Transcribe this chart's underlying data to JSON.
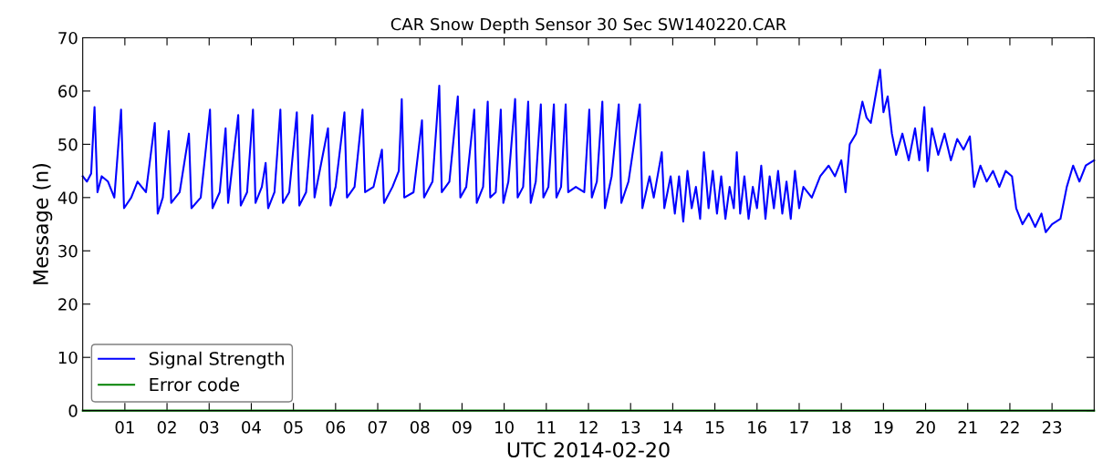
{
  "chart_data": {
    "type": "line",
    "title": "CAR Snow Depth Sensor 30 Sec SW140220.CAR",
    "xlabel": "UTC 2014-02-20",
    "ylabel": "Message (n)",
    "xlim": [
      0,
      24
    ],
    "ylim": [
      0,
      70
    ],
    "xticks": [
      {
        "value": 1,
        "label": "01"
      },
      {
        "value": 2,
        "label": "02"
      },
      {
        "value": 3,
        "label": "03"
      },
      {
        "value": 4,
        "label": "04"
      },
      {
        "value": 5,
        "label": "05"
      },
      {
        "value": 6,
        "label": "06"
      },
      {
        "value": 7,
        "label": "07"
      },
      {
        "value": 8,
        "label": "08"
      },
      {
        "value": 9,
        "label": "09"
      },
      {
        "value": 10,
        "label": "10"
      },
      {
        "value": 11,
        "label": "11"
      },
      {
        "value": 12,
        "label": "12"
      },
      {
        "value": 13,
        "label": "13"
      },
      {
        "value": 14,
        "label": "14"
      },
      {
        "value": 15,
        "label": "15"
      },
      {
        "value": 16,
        "label": "16"
      },
      {
        "value": 17,
        "label": "17"
      },
      {
        "value": 18,
        "label": "18"
      },
      {
        "value": 19,
        "label": "19"
      },
      {
        "value": 20,
        "label": "20"
      },
      {
        "value": 21,
        "label": "21"
      },
      {
        "value": 22,
        "label": "22"
      },
      {
        "value": 23,
        "label": "23"
      }
    ],
    "yticks": [
      0,
      10,
      20,
      30,
      40,
      50,
      60,
      70
    ],
    "grid": false,
    "legend": "bottom left",
    "series": [
      {
        "name": "Signal Strength",
        "color": "#0000ff",
        "x": [
          0.0,
          0.1,
          0.2,
          0.28,
          0.35,
          0.45,
          0.6,
          0.75,
          0.91,
          0.98,
          1.15,
          1.3,
          1.5,
          1.71,
          1.78,
          1.9,
          2.04,
          2.1,
          2.3,
          2.52,
          2.58,
          2.8,
          3.02,
          3.08,
          3.25,
          3.39,
          3.45,
          3.69,
          3.75,
          3.9,
          4.04,
          4.1,
          4.25,
          4.34,
          4.4,
          4.55,
          4.69,
          4.75,
          4.9,
          5.08,
          5.14,
          5.3,
          5.45,
          5.5,
          5.82,
          5.88,
          6.0,
          6.21,
          6.27,
          6.45,
          6.64,
          6.7,
          6.9,
          7.1,
          7.15,
          7.35,
          7.5,
          7.57,
          7.63,
          7.85,
          8.05,
          8.1,
          8.3,
          8.46,
          8.52,
          8.7,
          8.9,
          8.96,
          9.1,
          9.29,
          9.35,
          9.5,
          9.61,
          9.67,
          9.8,
          9.92,
          9.98,
          10.1,
          10.26,
          10.32,
          10.45,
          10.57,
          10.63,
          10.75,
          10.87,
          10.93,
          11.05,
          11.18,
          11.24,
          11.35,
          11.46,
          11.52,
          11.7,
          11.9,
          12.02,
          12.08,
          12.2,
          12.33,
          12.39,
          12.55,
          12.72,
          12.78,
          12.95,
          13.22,
          13.28,
          13.45,
          13.55,
          13.74,
          13.8,
          13.95,
          14.05,
          14.15,
          14.25,
          14.35,
          14.45,
          14.55,
          14.65,
          14.74,
          14.85,
          14.95,
          15.05,
          15.15,
          15.25,
          15.35,
          15.45,
          15.52,
          15.6,
          15.7,
          15.8,
          15.9,
          16.0,
          16.1,
          16.2,
          16.3,
          16.4,
          16.5,
          16.6,
          16.7,
          16.8,
          16.9,
          17.0,
          17.1,
          17.3,
          17.5,
          17.7,
          17.85,
          18.0,
          18.1,
          18.2,
          18.35,
          18.5,
          18.6,
          18.7,
          18.92,
          19.0,
          19.1,
          19.2,
          19.3,
          19.45,
          19.6,
          19.75,
          19.85,
          19.97,
          20.05,
          20.15,
          20.3,
          20.45,
          20.6,
          20.75,
          20.9,
          21.05,
          21.15,
          21.3,
          21.45,
          21.6,
          21.75,
          21.9,
          22.05,
          22.15,
          22.3,
          22.45,
          22.6,
          22.75,
          22.85,
          23.0,
          23.2,
          23.35,
          23.5,
          23.65,
          23.8,
          24.0
        ],
        "values": [
          44,
          43,
          44.5,
          57,
          41,
          44,
          43,
          40,
          56.5,
          38,
          40,
          43,
          41,
          54,
          37,
          40,
          52.5,
          39,
          41,
          52,
          38,
          40,
          56.5,
          38,
          41,
          53,
          39,
          55.5,
          38.5,
          41,
          56.5,
          39,
          42,
          46.5,
          38,
          41,
          56.5,
          39,
          41,
          56,
          38.5,
          41,
          55.5,
          40,
          53,
          38.5,
          42,
          56,
          40,
          42,
          56.5,
          41,
          42,
          49,
          39,
          42,
          45,
          58.5,
          40,
          41,
          54.5,
          40,
          43,
          61,
          41,
          43,
          59,
          40,
          42,
          56.5,
          39,
          42,
          58,
          40,
          41,
          56.5,
          39,
          43,
          58.5,
          40,
          42,
          58,
          39,
          43,
          57.5,
          40,
          42,
          57.5,
          40,
          42,
          57.5,
          41,
          42,
          41,
          56.5,
          40,
          43,
          58,
          38,
          44,
          57.5,
          39,
          43,
          57.5,
          38,
          44,
          40,
          48.5,
          38,
          44,
          37,
          44,
          35.5,
          45,
          38,
          42,
          36,
          48.5,
          38,
          45,
          37,
          44,
          36,
          42,
          38,
          48.5,
          37,
          44,
          36,
          42,
          38,
          46,
          36,
          44,
          38,
          45,
          37,
          43,
          36,
          45,
          38,
          42,
          40,
          44,
          46,
          44,
          47,
          41,
          50,
          52,
          58,
          55,
          54,
          64,
          56,
          59,
          52,
          48,
          52,
          47,
          53,
          47,
          57,
          45,
          53,
          48,
          52,
          47,
          51,
          49,
          51.5,
          42,
          46,
          43,
          45,
          42,
          45,
          44,
          38,
          35,
          37,
          34.5,
          37,
          33.5,
          35,
          36,
          42,
          46,
          43,
          46,
          47
        ]
      },
      {
        "name": "Error code",
        "color": "#008000",
        "x": [
          0,
          24
        ],
        "values": [
          0,
          0
        ]
      }
    ]
  }
}
